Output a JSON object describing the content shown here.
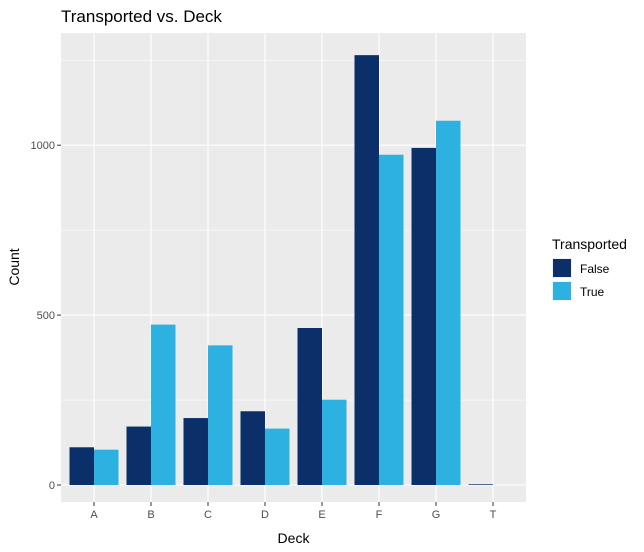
{
  "chart_data": {
    "type": "bar",
    "title": "Transported vs. Deck",
    "xlabel": "Deck",
    "ylabel": "Count",
    "categories": [
      "A",
      "B",
      "C",
      "D",
      "E",
      "F",
      "G",
      "T"
    ],
    "series": [
      {
        "name": "False",
        "values": [
          111,
          172,
          197,
          217,
          462,
          1265,
          992,
          2
        ],
        "color": "#0a2f69"
      },
      {
        "name": "True",
        "values": [
          104,
          472,
          411,
          166,
          251,
          972,
          1072,
          0
        ],
        "color": "#2db1e0"
      }
    ],
    "ylim": [
      0,
      1350
    ],
    "y_ticks": [
      0,
      500,
      1000
    ],
    "grid": true,
    "legend": {
      "title": "Transported",
      "placement": "right"
    },
    "panel_background": "#ebebeb",
    "grid_color": "#ffffff"
  }
}
